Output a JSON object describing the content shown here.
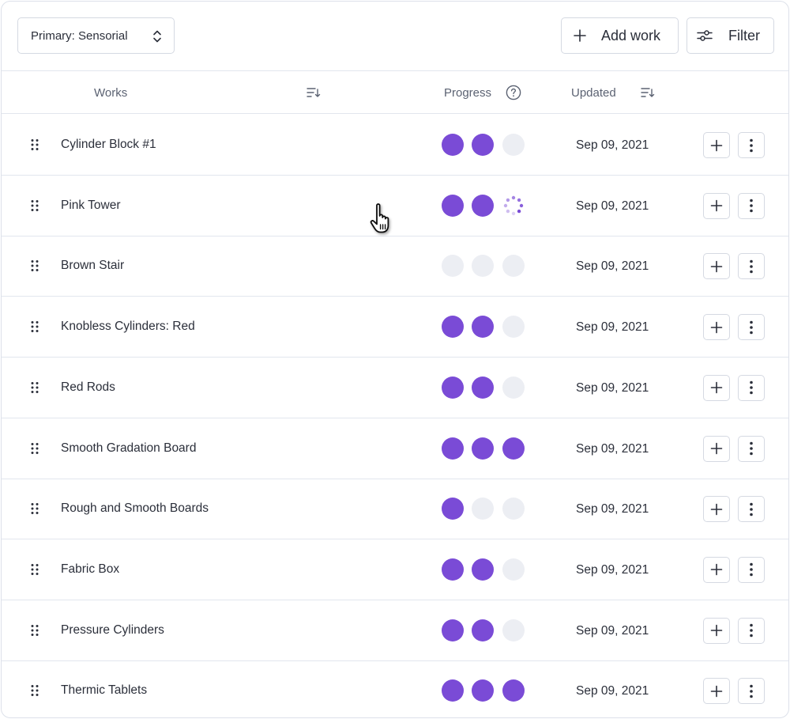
{
  "toolbar": {
    "level_select": "Primary: Sensorial",
    "add_work_label": "Add work",
    "filter_label": "Filter"
  },
  "table": {
    "columns": {
      "works": "Works",
      "progress": "Progress",
      "updated": "Updated"
    },
    "rows": [
      {
        "name": "Cylinder Block #1",
        "progress": [
          1,
          1,
          0
        ],
        "updated": "Sep 09, 2021"
      },
      {
        "name": "Pink Tower",
        "progress": [
          1,
          1,
          "loading"
        ],
        "updated": "Sep 09, 2021"
      },
      {
        "name": "Brown Stair",
        "progress": [
          0,
          0,
          0
        ],
        "updated": "Sep 09, 2021"
      },
      {
        "name": "Knobless Cylinders: Red",
        "progress": [
          1,
          1,
          0
        ],
        "updated": "Sep 09, 2021"
      },
      {
        "name": "Red Rods",
        "progress": [
          1,
          1,
          0
        ],
        "updated": "Sep 09, 2021"
      },
      {
        "name": "Smooth Gradation Board",
        "progress": [
          1,
          1,
          1
        ],
        "updated": "Sep 09, 2021"
      },
      {
        "name": "Rough and Smooth Boards",
        "progress": [
          1,
          0,
          0
        ],
        "updated": "Sep 09, 2021"
      },
      {
        "name": "Fabric Box",
        "progress": [
          1,
          1,
          0
        ],
        "updated": "Sep 09, 2021"
      },
      {
        "name": "Pressure Cylinders",
        "progress": [
          1,
          1,
          0
        ],
        "updated": "Sep 09, 2021"
      },
      {
        "name": "Thermic Tablets",
        "progress": [
          1,
          1,
          1
        ],
        "updated": "Sep 09, 2021"
      }
    ]
  },
  "colors": {
    "accent": "#7a4bd6",
    "dot_empty": "#eceef3",
    "border": "#dde1ea",
    "text": "#2b2f3a",
    "muted": "#5b6272"
  },
  "icons": {
    "select": "chevron-up-down-icon",
    "add": "plus-icon",
    "filter": "sliders-icon",
    "sort": "sort-descending-icon",
    "help": "question-circle-icon",
    "drag": "drag-handle-icon",
    "more": "more-vertical-icon",
    "cursor": "hand-pointer-icon",
    "loading": "spinner-icon"
  }
}
